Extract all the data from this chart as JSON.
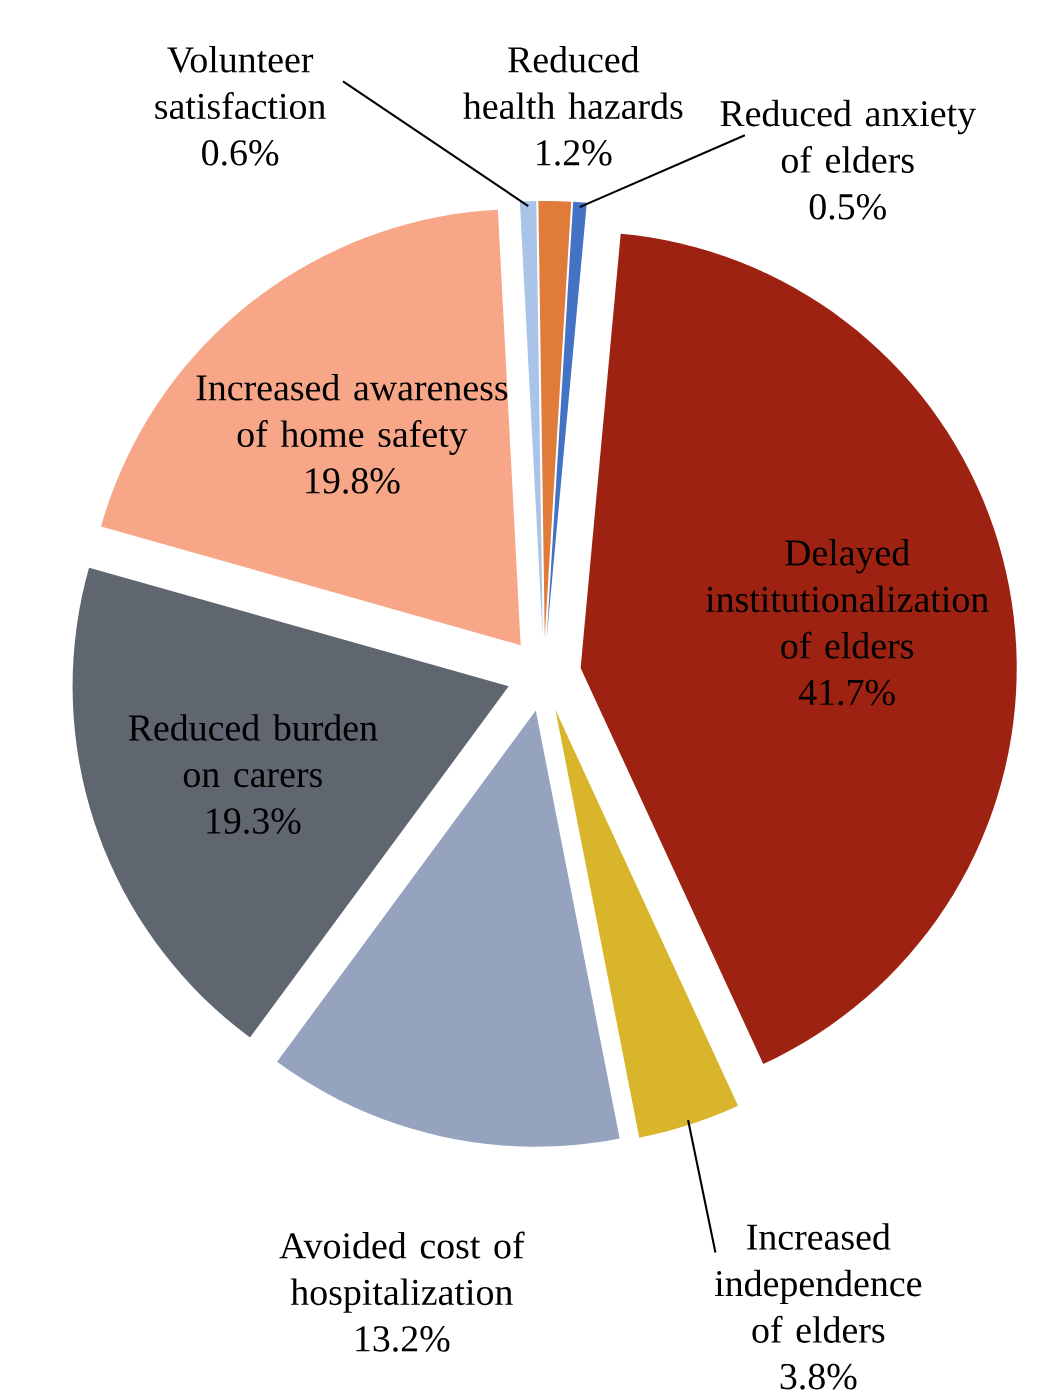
{
  "chart_data": {
    "type": "pie",
    "categories": [
      "Volunteer satisfaction",
      "Reduced health hazards",
      "Reduced anxiety of elders",
      "Delayed institutionalization of elders",
      "Increased independence of elders",
      "Avoided cost of hospitalization",
      "Reduced burden on carers",
      "Increased awareness of home safety"
    ],
    "values": [
      0.6,
      1.2,
      0.5,
      41.7,
      3.8,
      13.2,
      19.3,
      19.8
    ],
    "value_labels": [
      "0.6%",
      "1.2%",
      "0.5%",
      "41.7%",
      "3.8%",
      "13.2%",
      "19.3%",
      "19.8%"
    ],
    "colors": [
      "#a9c4e8",
      "#e07b39",
      "#4472c4",
      "#9e2211",
      "#d8b52a",
      "#95a3bf",
      "#5f6670",
      "#f7a688"
    ]
  }
}
